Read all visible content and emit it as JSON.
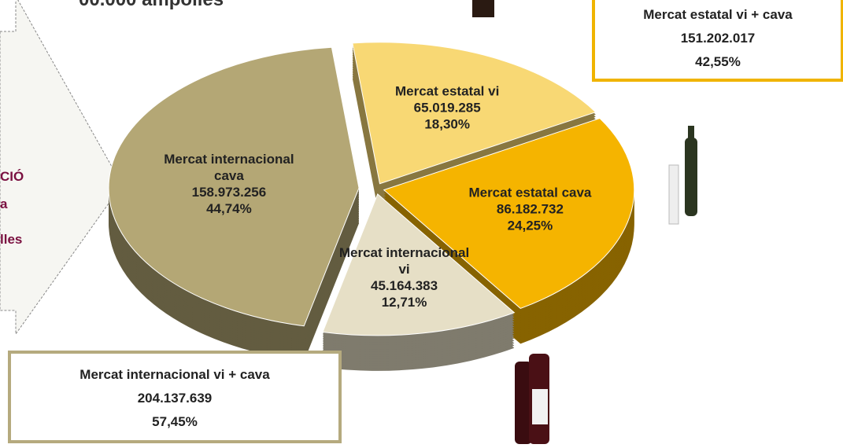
{
  "chart_data": {
    "type": "pie",
    "title": "00.000 ampolles",
    "categories": [
      "Mercat estatal vi",
      "Mercat estatal cava",
      "Mercat internacional vi",
      "Mercat internacional cava"
    ],
    "values": [
      18.3,
      24.25,
      12.71,
      44.74
    ],
    "value_labels": [
      "18,30%",
      "24,25%",
      "12,71%",
      "44,74%"
    ],
    "counts": [
      65019285,
      86182732,
      45164383,
      158973256
    ],
    "count_labels": [
      "65.019.285",
      "86.182.732",
      "45.164.383",
      "158.973.256"
    ],
    "colors": [
      "#f8d874",
      "#f5b400",
      "#e6dfc6",
      "#b4a775"
    ],
    "annotations": [
      {
        "lines": [
          "Mercat estatal vi + cava",
          "151.202.017",
          "42,55%"
        ]
      },
      {
        "lines": [
          "Mercat internacional vi + cava",
          "204.137.639",
          "57,45%"
        ]
      }
    ],
    "side_text": [
      "CIÓ",
      "a",
      "lles"
    ]
  }
}
